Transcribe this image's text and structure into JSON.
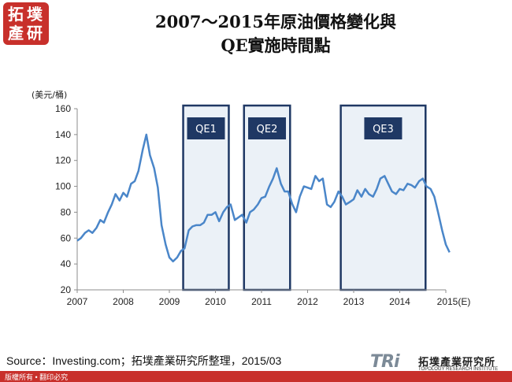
{
  "logo": {
    "line1": "拓",
    "line2": "墣",
    "line3": "產",
    "line4": "研"
  },
  "title": {
    "line1": "2007～2015年原油價格變化與",
    "line2": "QE實施時間點"
  },
  "colors": {
    "line": "#4a86c9",
    "qe_border": "#1f3864",
    "qe_fill": "#dbe5f1",
    "qe_label_bg": "#1f3864",
    "brand_red": "#c8302b"
  },
  "chart_data": {
    "type": "line",
    "ylabel": "(美元/桶)",
    "ylim": [
      20,
      160
    ],
    "yticks": [
      20,
      40,
      60,
      80,
      100,
      120,
      140,
      160
    ],
    "xlim": [
      2007,
      2015
    ],
    "xticks": [
      "2007",
      "2008",
      "2009",
      "2010",
      "2011",
      "2012",
      "2013",
      "2014",
      "2015(E)"
    ],
    "grid": false,
    "series": [
      {
        "values": [
          [
            2007.0,
            58
          ],
          [
            2007.08,
            60
          ],
          [
            2007.17,
            64
          ],
          [
            2007.25,
            66
          ],
          [
            2007.33,
            64
          ],
          [
            2007.42,
            68
          ],
          [
            2007.5,
            74
          ],
          [
            2007.58,
            72
          ],
          [
            2007.67,
            80
          ],
          [
            2007.75,
            86
          ],
          [
            2007.83,
            94
          ],
          [
            2007.92,
            89
          ],
          [
            2008.0,
            95
          ],
          [
            2008.08,
            92
          ],
          [
            2008.17,
            102
          ],
          [
            2008.25,
            104
          ],
          [
            2008.33,
            112
          ],
          [
            2008.42,
            128
          ],
          [
            2008.5,
            140
          ],
          [
            2008.58,
            124
          ],
          [
            2008.67,
            114
          ],
          [
            2008.75,
            99
          ],
          [
            2008.83,
            70
          ],
          [
            2008.92,
            55
          ],
          [
            2009.0,
            45
          ],
          [
            2009.08,
            42
          ],
          [
            2009.17,
            45
          ],
          [
            2009.25,
            50
          ],
          [
            2009.33,
            52
          ],
          [
            2009.42,
            66
          ],
          [
            2009.5,
            69
          ],
          [
            2009.58,
            70
          ],
          [
            2009.67,
            70
          ],
          [
            2009.75,
            72
          ],
          [
            2009.83,
            78
          ],
          [
            2009.92,
            78
          ],
          [
            2010.0,
            80
          ],
          [
            2010.08,
            73
          ],
          [
            2010.17,
            80
          ],
          [
            2010.25,
            84
          ],
          [
            2010.33,
            86
          ],
          [
            2010.42,
            74
          ],
          [
            2010.5,
            76
          ],
          [
            2010.58,
            78
          ],
          [
            2010.67,
            72
          ],
          [
            2010.75,
            80
          ],
          [
            2010.83,
            82
          ],
          [
            2010.92,
            86
          ],
          [
            2011.0,
            91
          ],
          [
            2011.08,
            92
          ],
          [
            2011.17,
            100
          ],
          [
            2011.25,
            106
          ],
          [
            2011.33,
            114
          ],
          [
            2011.42,
            102
          ],
          [
            2011.5,
            96
          ],
          [
            2011.58,
            96
          ],
          [
            2011.67,
            86
          ],
          [
            2011.75,
            80
          ],
          [
            2011.83,
            92
          ],
          [
            2011.92,
            100
          ],
          [
            2012.0,
            99
          ],
          [
            2012.08,
            98
          ],
          [
            2012.17,
            108
          ],
          [
            2012.25,
            104
          ],
          [
            2012.33,
            106
          ],
          [
            2012.42,
            86
          ],
          [
            2012.5,
            84
          ],
          [
            2012.58,
            88
          ],
          [
            2012.67,
            96
          ],
          [
            2012.75,
            92
          ],
          [
            2012.83,
            86
          ],
          [
            2012.92,
            88
          ],
          [
            2013.0,
            90
          ],
          [
            2013.08,
            97
          ],
          [
            2013.17,
            92
          ],
          [
            2013.25,
            98
          ],
          [
            2013.33,
            94
          ],
          [
            2013.42,
            92
          ],
          [
            2013.5,
            98
          ],
          [
            2013.58,
            106
          ],
          [
            2013.67,
            108
          ],
          [
            2013.75,
            102
          ],
          [
            2013.83,
            96
          ],
          [
            2013.92,
            94
          ],
          [
            2014.0,
            98
          ],
          [
            2014.08,
            97
          ],
          [
            2014.17,
            102
          ],
          [
            2014.25,
            101
          ],
          [
            2014.33,
            99
          ],
          [
            2014.42,
            104
          ],
          [
            2014.5,
            106
          ],
          [
            2014.58,
            100
          ],
          [
            2014.67,
            98
          ],
          [
            2014.75,
            92
          ],
          [
            2014.83,
            80
          ],
          [
            2014.92,
            66
          ],
          [
            2015.0,
            55
          ],
          [
            2015.08,
            49
          ]
        ]
      }
    ],
    "qe_periods": [
      {
        "label": "QE1",
        "start": 2009.3,
        "end": 2010.29
      },
      {
        "label": "QE2",
        "start": 2010.62,
        "end": 2011.62
      },
      {
        "label": "QE3",
        "start": 2012.72,
        "end": 2014.56
      }
    ]
  },
  "source": "Source：Investing.com；拓墣產業研究所整理，2015/03",
  "footer": "版權所有 • 翻印必究",
  "brand": {
    "tri": "TRi",
    "name_cn": "拓墣產業研究所",
    "name_en": "TOPOLOGY RESEARCH INSTITUTE"
  }
}
